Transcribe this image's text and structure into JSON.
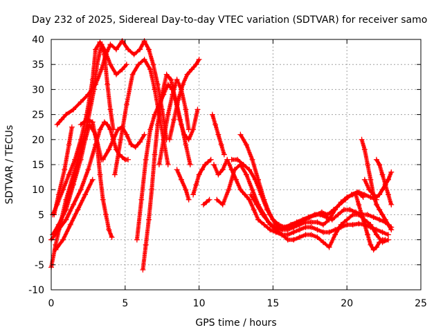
{
  "chart_data": {
    "type": "scatter",
    "title": "Day 232 of 2025, Sidereal Day-to-day VTEC variation (SDTVAR) for receiver samo",
    "xlabel": "GPS time / hours",
    "ylabel": "SDTVAR / TECUs",
    "xlim": [
      0,
      25
    ],
    "ylim": [
      -10,
      40
    ],
    "xticks": [
      0,
      5,
      10,
      15,
      20,
      25
    ],
    "yticks": [
      -10,
      -5,
      0,
      5,
      10,
      15,
      20,
      25,
      30,
      35,
      40
    ],
    "grid": true,
    "marker": "+",
    "color": "#ff0000",
    "series": [
      {
        "name": "s1",
        "x": [
          0.0,
          0.3,
          0.6,
          1.0,
          1.5,
          2.0,
          2.5,
          2.9,
          3.1,
          3.4,
          3.6,
          3.8,
          4.0,
          4.2
        ],
        "y": [
          -5.5,
          -1,
          3,
          8,
          13,
          18,
          24,
          30,
          35,
          39,
          37,
          31,
          26,
          22
        ]
      },
      {
        "name": "s2",
        "x": [
          0.1,
          0.4,
          0.8,
          1.2,
          1.6,
          2.0,
          2.4,
          2.8,
          3.0,
          3.3,
          3.6,
          4.0,
          4.4,
          4.8,
          5.1
        ],
        "y": [
          5,
          7,
          10,
          13,
          16,
          20,
          25,
          32,
          38,
          39.5,
          38,
          35,
          33,
          34,
          35
        ]
      },
      {
        "name": "s3",
        "x": [
          0.4,
          0.7,
          1.0,
          1.5,
          2.0,
          2.5,
          3.0,
          3.4,
          3.7,
          4.0,
          4.4,
          4.8,
          5.2,
          5.6,
          6.0,
          6.3,
          6.6,
          6.9,
          7.2,
          7.5,
          7.8
        ],
        "y": [
          23,
          24,
          25,
          26,
          27.5,
          29,
          31,
          34,
          37,
          39,
          38,
          39.7,
          38,
          37,
          38,
          39.7,
          38,
          35,
          31,
          26,
          20
        ]
      },
      {
        "name": "s4",
        "x": [
          0.2,
          0.5,
          0.9,
          1.2,
          1.4
        ],
        "y": [
          5,
          9,
          14,
          19,
          22.5
        ]
      },
      {
        "name": "s5",
        "x": [
          0.0,
          0.5,
          1.0,
          1.5,
          2.0,
          2.5,
          3.0,
          3.3,
          3.6,
          3.8,
          4.0,
          4.2,
          4.4,
          4.6,
          4.8,
          5.0,
          5.2
        ],
        "y": [
          0,
          2,
          4,
          7,
          10,
          14,
          19,
          22,
          23.5,
          23,
          22,
          20,
          18,
          17,
          16.5,
          16,
          16
        ]
      },
      {
        "name": "s6",
        "x": [
          0.1,
          0.5,
          1.0,
          1.5,
          2.0,
          2.3,
          2.6,
          3.0,
          3.4
        ],
        "y": [
          1,
          3,
          6,
          11,
          16,
          20,
          23,
          21,
          16
        ]
      },
      {
        "name": "s7",
        "x": [
          0.3,
          0.8,
          1.3,
          1.8,
          2.3,
          2.8
        ],
        "y": [
          -2,
          0,
          3,
          6,
          9,
          12
        ]
      },
      {
        "name": "s8",
        "x": [
          2.0,
          2.4,
          2.8,
          3.1,
          3.3,
          3.5,
          3.7,
          3.9,
          4.1
        ],
        "y": [
          23,
          24,
          23.5,
          19,
          13,
          8,
          5,
          2,
          0.5
        ]
      },
      {
        "name": "s9",
        "x": [
          3.5,
          3.9,
          4.2,
          4.5,
          4.8,
          5.1,
          5.4,
          5.7,
          6.0,
          6.3
        ],
        "y": [
          16,
          18,
          20,
          22,
          22.5,
          21,
          19,
          18.5,
          19.5,
          21
        ]
      },
      {
        "name": "s10",
        "x": [
          4.3,
          4.7,
          5.1,
          5.5,
          5.9,
          6.3,
          6.7,
          7.0,
          7.3,
          7.6,
          7.9
        ],
        "y": [
          13,
          20,
          27,
          33,
          35,
          36,
          34,
          30,
          25,
          20,
          15
        ]
      },
      {
        "name": "s11",
        "x": [
          5.8,
          6.1,
          6.4,
          6.7,
          7.0,
          7.3,
          7.6,
          7.9,
          8.2,
          8.5,
          8.8,
          9.1,
          9.4
        ],
        "y": [
          0,
          8,
          16,
          22,
          25,
          27,
          29,
          31,
          30,
          27,
          23,
          19,
          15
        ]
      },
      {
        "name": "s12",
        "x": [
          6.2,
          6.4,
          6.6,
          6.8,
          7.0,
          7.2,
          7.5,
          7.8,
          8.1,
          8.4,
          8.7,
          9.0,
          9.3,
          9.6,
          9.9
        ],
        "y": [
          -6,
          -1,
          4,
          10,
          17,
          23,
          29,
          33,
          32,
          28,
          24,
          21,
          20,
          22,
          26
        ]
      },
      {
        "name": "s13",
        "x": [
          7.3,
          7.6,
          7.9,
          8.2,
          8.5,
          8.8,
          9.1,
          9.3
        ],
        "y": [
          15,
          20,
          25,
          29,
          32,
          30,
          26,
          22
        ]
      },
      {
        "name": "s14",
        "x": [
          8.0,
          8.3,
          8.6,
          8.9,
          9.2,
          9.5,
          9.8,
          10.0
        ],
        "y": [
          20,
          24,
          28,
          31,
          33,
          34,
          35,
          36
        ]
      },
      {
        "name": "s15",
        "x": [
          8.5,
          8.8,
          9.1,
          9.3
        ],
        "y": [
          14,
          12,
          10,
          8
        ]
      },
      {
        "name": "s16",
        "x": [
          9.6,
          9.8,
          10.0,
          10.2,
          10.4,
          10.6,
          10.8
        ],
        "y": [
          9,
          11,
          13,
          14,
          15,
          15.5,
          16
        ]
      },
      {
        "name": "s17",
        "x": [
          10.3,
          10.5,
          10.7
        ],
        "y": [
          7,
          7.5,
          8
        ]
      },
      {
        "name": "s18",
        "x": [
          10.9,
          11.1,
          11.3,
          11.5,
          11.7
        ],
        "y": [
          25,
          23,
          21,
          19,
          17
        ]
      },
      {
        "name": "s19",
        "x": [
          11.0,
          11.3,
          11.6,
          11.9,
          12.2,
          12.5,
          12.8,
          13.1,
          13.4,
          13.7,
          14.0,
          14.4,
          14.8,
          15.2,
          15.6,
          16.0,
          16.4,
          16.8,
          17.2,
          17.6,
          18.0,
          18.4,
          18.8,
          19.2,
          19.6,
          20.0,
          20.4,
          20.8,
          21.2,
          21.6,
          22.0,
          22.4,
          22.8
        ],
        "y": [
          15,
          13,
          14,
          16,
          14,
          12,
          10,
          9,
          8,
          6,
          4,
          3,
          2,
          1.5,
          1,
          1,
          1.5,
          2,
          2.5,
          2.5,
          2,
          1.5,
          1.5,
          2,
          2.5,
          3,
          3,
          3.2,
          3,
          2.5,
          2,
          1.5,
          1
        ]
      },
      {
        "name": "s20",
        "x": [
          11.2,
          11.6,
          12.0,
          12.4,
          12.8,
          13.2,
          13.6,
          14.0,
          14.4,
          14.8,
          15.2,
          15.6,
          16.0,
          16.4,
          16.8,
          17.2,
          17.6,
          18.0,
          18.4,
          18.8,
          19.2,
          19.6,
          20.0,
          20.4,
          20.8,
          21.2,
          21.6,
          22.0,
          22.4,
          22.8
        ],
        "y": [
          8,
          7,
          10,
          14,
          15,
          13,
          10,
          7,
          5,
          3,
          2,
          1,
          0,
          0,
          0.5,
          1,
          1,
          0.5,
          -0.5,
          -1.5,
          1,
          3,
          4,
          5,
          5,
          4,
          3,
          1,
          -0.5,
          0
        ]
      },
      {
        "name": "s21",
        "x": [
          12.2,
          12.6,
          13.0,
          13.4,
          13.8,
          14.2,
          14.6,
          15.0,
          15.4,
          15.8,
          16.2,
          16.6,
          17.0,
          17.4,
          17.8,
          18.2,
          18.6,
          19.0,
          19.4,
          19.8,
          20.2,
          20.6,
          21.0,
          21.4,
          21.8,
          22.2,
          22.6,
          23.0
        ],
        "y": [
          16,
          16,
          15,
          14,
          12,
          9,
          6,
          4,
          3,
          2.5,
          3,
          3.5,
          4,
          4.5,
          5,
          5,
          4.5,
          4,
          5,
          6,
          6,
          5.5,
          5,
          5,
          4.5,
          4,
          3.5,
          2.5
        ]
      },
      {
        "name": "s22",
        "x": [
          12.8,
          13.2,
          13.6,
          14.0,
          14.4,
          14.8,
          15.2,
          15.6,
          16.0,
          16.4,
          16.8,
          17.2,
          17.6,
          18.0,
          18.4,
          18.8,
          19.2,
          19.6,
          20.0,
          20.4,
          20.8,
          21.2,
          21.6,
          22.0
        ],
        "y": [
          21,
          19,
          16,
          12,
          8,
          5,
          3,
          2,
          2,
          2.5,
          3,
          3.5,
          3.5,
          3.5,
          3,
          4,
          6,
          7.5,
          8.5,
          9,
          9.5,
          9,
          8.5,
          8
        ]
      },
      {
        "name": "s23",
        "x": [
          13.5,
          13.9,
          14.3,
          14.7,
          15.1,
          15.5,
          15.9,
          16.3,
          16.7,
          17.1,
          17.5,
          17.9,
          18.3,
          18.7,
          19.1,
          19.5,
          19.9,
          20.3,
          20.7,
          21.1
        ],
        "y": [
          9,
          7,
          5,
          3.5,
          2.5,
          2,
          2.5,
          3,
          3.5,
          4,
          4.5,
          5,
          5.5,
          5,
          6,
          7,
          8,
          9,
          9.5,
          8.5
        ]
      },
      {
        "name": "s24",
        "x": [
          21.0,
          21.2,
          21.4,
          21.6,
          21.8,
          22.0,
          22.2,
          22.4,
          22.6,
          22.8,
          23.0
        ],
        "y": [
          20,
          18,
          15,
          12,
          9,
          7,
          6,
          5,
          4,
          3,
          2
        ]
      },
      {
        "name": "s25",
        "x": [
          20.6,
          20.8,
          21.0,
          21.2,
          21.4,
          21.6,
          21.8,
          22.0,
          22.2,
          22.4,
          22.6
        ],
        "y": [
          9,
          7,
          5,
          3,
          1,
          -1,
          -2,
          -1.5,
          -0.5,
          0,
          0
        ]
      },
      {
        "name": "s26",
        "x": [
          21.2,
          21.5,
          21.8,
          22.0,
          22.2,
          22.4,
          22.6,
          22.8,
          23.0
        ],
        "y": [
          12,
          10,
          9,
          8.5,
          9,
          10,
          11,
          12,
          13.5
        ]
      },
      {
        "name": "s27",
        "x": [
          22.0,
          22.2,
          22.4,
          22.6,
          22.8,
          23.0
        ],
        "y": [
          16,
          15,
          13,
          11,
          9,
          7
        ]
      }
    ]
  }
}
